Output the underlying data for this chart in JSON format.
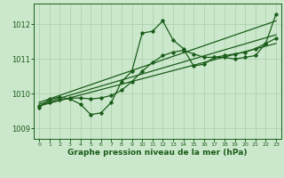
{
  "xlabel": "Graphe pression niveau de la mer (hPa)",
  "xlim": [
    -0.5,
    23.5
  ],
  "ylim": [
    1008.7,
    1012.6
  ],
  "yticks": [
    1009,
    1010,
    1011,
    1012
  ],
  "xticks": [
    0,
    1,
    2,
    3,
    4,
    5,
    6,
    7,
    8,
    9,
    10,
    11,
    12,
    13,
    14,
    15,
    16,
    17,
    18,
    19,
    20,
    21,
    22,
    23
  ],
  "bg_color": "#cce8cc",
  "grid_color": "#a8cfa8",
  "line_color": "#1a5c1a",
  "main_x": [
    0,
    1,
    2,
    3,
    4,
    5,
    6,
    7,
    8,
    9,
    10,
    11,
    12,
    13,
    14,
    15,
    16,
    17,
    18,
    19,
    20,
    21,
    22,
    23
  ],
  "main_y": [
    1009.6,
    1009.85,
    1009.9,
    1009.85,
    1009.7,
    1009.4,
    1009.45,
    1009.75,
    1010.35,
    1010.65,
    1011.75,
    1011.8,
    1012.1,
    1011.55,
    1011.3,
    1010.8,
    1010.85,
    1011.05,
    1011.05,
    1011.0,
    1011.05,
    1011.1,
    1011.45,
    1012.3
  ],
  "trend1_x": [
    0,
    23
  ],
  "trend1_y": [
    1009.65,
    1011.45
  ],
  "trend2_x": [
    0,
    23
  ],
  "trend2_y": [
    1009.7,
    1011.7
  ],
  "trend3_x": [
    0,
    23
  ],
  "trend3_y": [
    1009.75,
    1012.1
  ],
  "smooth_x": [
    0,
    1,
    2,
    3,
    4,
    5,
    6,
    7,
    8,
    9,
    10,
    11,
    12,
    13,
    14,
    15,
    16,
    17,
    18,
    19,
    20,
    21,
    22,
    23
  ],
  "smooth_y": [
    1009.65,
    1009.75,
    1009.82,
    1009.87,
    1009.88,
    1009.85,
    1009.88,
    1009.95,
    1010.1,
    1010.35,
    1010.65,
    1010.9,
    1011.1,
    1011.2,
    1011.25,
    1011.15,
    1011.05,
    1011.05,
    1011.1,
    1011.15,
    1011.2,
    1011.3,
    1011.45,
    1011.6
  ],
  "figsize": [
    3.2,
    2.0
  ],
  "dpi": 100
}
